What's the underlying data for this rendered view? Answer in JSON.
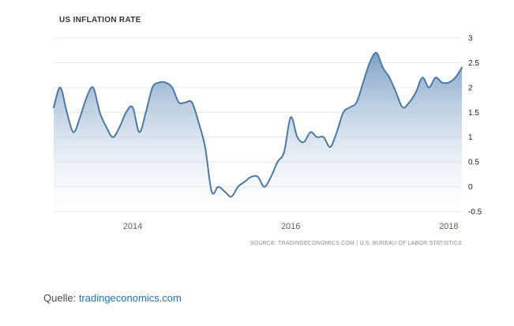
{
  "chart_data": {
    "type": "area",
    "title": "US INFLATION RATE",
    "source": "SOURCE: TRADINGECONOMICS.COM | U.S. BUREAU OF LABOR STATISTICS",
    "x_unit": "month",
    "x_range": [
      "2013-01",
      "2018-03"
    ],
    "values": [
      1.6,
      2.0,
      1.5,
      1.1,
      1.4,
      1.8,
      2.0,
      1.5,
      1.2,
      1.0,
      1.2,
      1.5,
      1.6,
      1.1,
      1.5,
      2.0,
      2.1,
      2.1,
      2.0,
      1.7,
      1.7,
      1.7,
      1.3,
      0.8,
      -0.1,
      0.0,
      -0.1,
      -0.2,
      0.0,
      0.1,
      0.2,
      0.2,
      0.0,
      0.2,
      0.5,
      0.7,
      1.4,
      1.0,
      0.9,
      1.1,
      1.0,
      1.0,
      0.8,
      1.1,
      1.5,
      1.6,
      1.7,
      2.1,
      2.5,
      2.7,
      2.4,
      2.2,
      1.9,
      1.6,
      1.7,
      1.9,
      2.2,
      2.0,
      2.2,
      2.1,
      2.1,
      2.2,
      2.4
    ],
    "ylim": [
      -0.5,
      3
    ],
    "y_ticks": [
      {
        "value": 3,
        "label": "3"
      },
      {
        "value": 2.5,
        "label": "2.5"
      },
      {
        "value": 2,
        "label": "2"
      },
      {
        "value": 1.5,
        "label": "1.5"
      },
      {
        "value": 1,
        "label": "1"
      },
      {
        "value": 0.5,
        "label": "0.5"
      },
      {
        "value": 0,
        "label": "0"
      },
      {
        "value": -0.5,
        "label": "-0.5"
      }
    ],
    "x_ticks": [
      {
        "index": 12,
        "label": "2014"
      },
      {
        "index": 36,
        "label": "2016"
      },
      {
        "index": 60,
        "label": "2018"
      }
    ],
    "grid": true,
    "legend": "none",
    "colors": {
      "line": "#4a7aa7",
      "area_top": "#608cb8",
      "area_bottom": "#fdfeff",
      "gridline": "#e6e6e6",
      "y_tick_text": "#262626",
      "x_tick_text": "#6b6151"
    }
  },
  "footer": {
    "label": "Quelle: ",
    "link_text": "tradingeconomics.com",
    "link_color": "#1a75bb"
  }
}
